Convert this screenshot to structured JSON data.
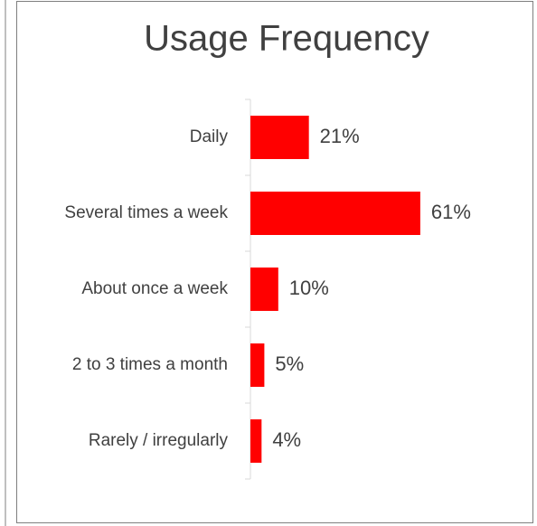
{
  "chart_data": {
    "type": "bar",
    "orientation": "horizontal",
    "title": "Usage Frequency",
    "categories": [
      "Daily",
      "Several times a week",
      "About once a week",
      "2 to 3 times a month",
      "Rarely / irregularly"
    ],
    "values": [
      21,
      61,
      10,
      5,
      4
    ],
    "value_labels": [
      "21%",
      "61%",
      "10%",
      "5%",
      "4%"
    ],
    "color": "#ff0000"
  }
}
